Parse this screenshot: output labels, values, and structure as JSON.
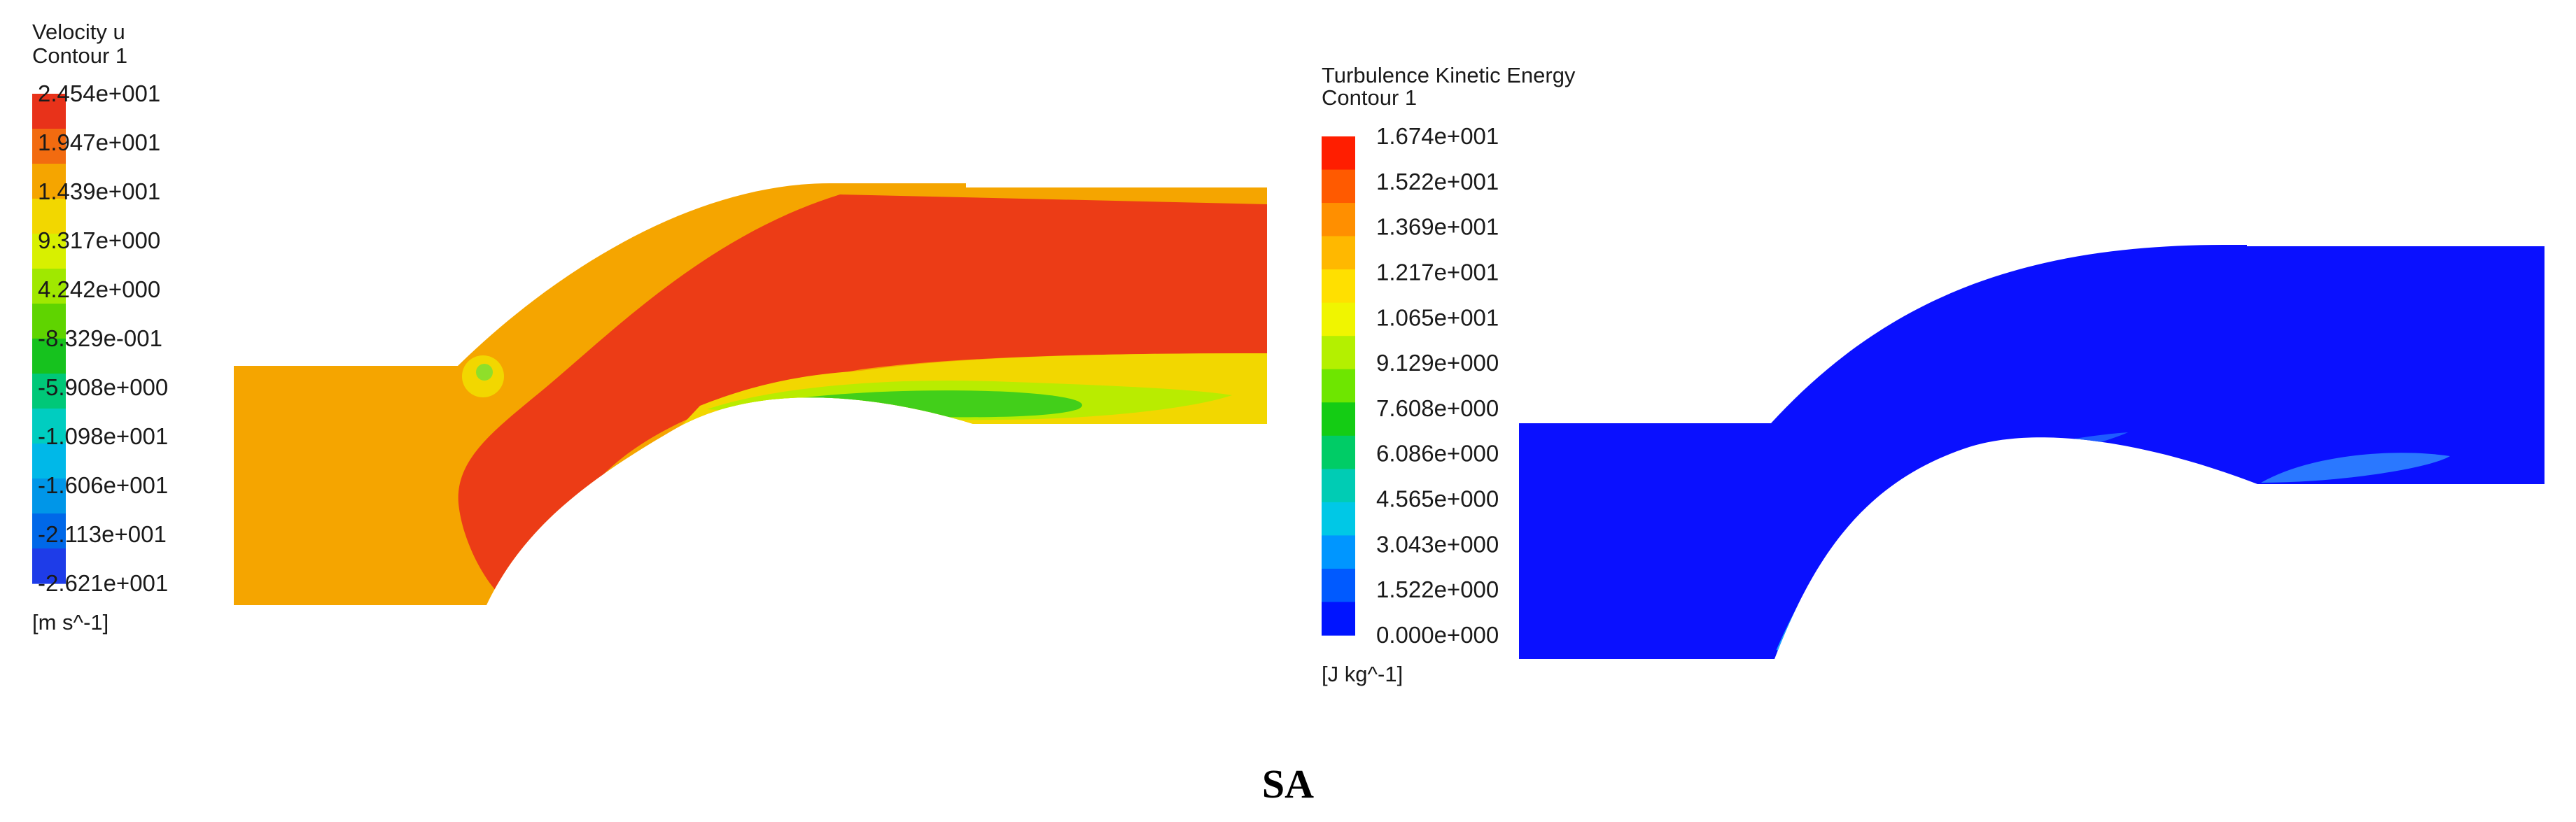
{
  "panels": [
    {
      "id": "velocity",
      "title": "Velocity u",
      "subtitle": "Contour 1",
      "unit": "[m s^-1]",
      "legend_values": [
        "2.454e+001",
        "1.947e+001",
        "1.439e+001",
        "9.317e+000",
        "4.242e+000",
        "-8.329e-001",
        "-5.908e+000",
        "-1.098e+001",
        "-1.606e+001",
        "-2.113e+001",
        "-2.621e+001"
      ],
      "colormap": [
        "#e8321a",
        "#f26b10",
        "#f5a500",
        "#f2d700",
        "#d8f000",
        "#a0e800",
        "#5fd400",
        "#16c21e",
        "#00c878",
        "#00cdc0",
        "#00b8e8",
        "#0096e8",
        "#0068e8",
        "#1e3ce8"
      ]
    },
    {
      "id": "tke",
      "title": "Turbulence Kinetic Energy",
      "subtitle": "Contour 1",
      "unit": "[J kg^-1]",
      "legend_values": [
        "1.674e+001",
        "1.522e+001",
        "1.369e+001",
        "1.217e+001",
        "1.065e+001",
        "9.129e+000",
        "7.608e+000",
        "6.086e+000",
        "4.565e+000",
        "3.043e+000",
        "1.522e+000",
        "0.000e+000"
      ],
      "colormap": [
        "#ff1e00",
        "#ff5a00",
        "#ff8f00",
        "#ffb800",
        "#ffe000",
        "#f0f500",
        "#b4f000",
        "#6ee600",
        "#14cc14",
        "#00cc66",
        "#00ccb4",
        "#00c8e6",
        "#0096ff",
        "#005aff",
        "#0014ff"
      ]
    }
  ],
  "caption": "SA"
}
